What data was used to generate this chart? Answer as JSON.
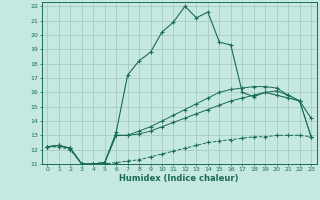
{
  "xlabel": "Humidex (Indice chaleur)",
  "ylabel": "",
  "bg_color": "#c5e8e0",
  "grid_color": "#a8ccc5",
  "line_color": "#1a6b5a",
  "xlim": [
    -0.5,
    23.5
  ],
  "ylim": [
    11,
    22.3
  ],
  "xticks": [
    0,
    1,
    2,
    3,
    4,
    5,
    6,
    7,
    8,
    9,
    10,
    11,
    12,
    13,
    14,
    15,
    16,
    17,
    18,
    19,
    20,
    21,
    22,
    23
  ],
  "yticks": [
    11,
    12,
    13,
    14,
    15,
    16,
    17,
    18,
    19,
    20,
    21,
    22
  ],
  "line_peaked_x": [
    0,
    1,
    2,
    3,
    4,
    5,
    6,
    7,
    8,
    9,
    10,
    11,
    12,
    13,
    14,
    15,
    16,
    17,
    18,
    19,
    20,
    21,
    22,
    23
  ],
  "line_peaked_y": [
    12.2,
    12.3,
    12.1,
    11.0,
    11.0,
    11.1,
    13.2,
    17.2,
    18.2,
    18.8,
    20.2,
    20.9,
    22.0,
    21.2,
    21.6,
    19.5,
    19.3,
    16.0,
    15.7,
    16.0,
    15.8,
    15.6,
    15.4,
    14.2
  ],
  "line_upper_x": [
    0,
    1,
    2,
    3,
    4,
    5,
    6,
    7,
    8,
    9,
    10,
    11,
    12,
    13,
    14,
    15,
    16,
    17,
    18,
    19,
    20,
    21,
    22,
    23
  ],
  "line_upper_y": [
    12.2,
    12.3,
    12.1,
    11.0,
    11.0,
    11.1,
    13.0,
    13.0,
    13.3,
    13.6,
    14.0,
    14.4,
    14.8,
    15.2,
    15.6,
    16.0,
    16.2,
    16.3,
    16.4,
    16.4,
    16.3,
    15.8,
    15.4,
    12.9
  ],
  "line_mid_x": [
    0,
    1,
    2,
    3,
    4,
    5,
    6,
    7,
    8,
    9,
    10,
    11,
    12,
    13,
    14,
    15,
    16,
    17,
    18,
    19,
    20,
    21,
    22,
    23
  ],
  "line_mid_y": [
    12.2,
    12.3,
    12.1,
    11.0,
    11.0,
    11.1,
    13.0,
    13.0,
    13.1,
    13.3,
    13.6,
    13.9,
    14.2,
    14.5,
    14.8,
    15.1,
    15.4,
    15.6,
    15.8,
    16.0,
    16.1,
    15.8,
    15.4,
    12.9
  ],
  "line_lower_x": [
    0,
    1,
    2,
    3,
    4,
    5,
    6,
    7,
    8,
    9,
    10,
    11,
    12,
    13,
    14,
    15,
    16,
    17,
    18,
    19,
    20,
    21,
    22,
    23
  ],
  "line_lower_y": [
    12.2,
    12.2,
    12.0,
    11.0,
    11.0,
    11.0,
    11.1,
    11.2,
    11.3,
    11.5,
    11.7,
    11.9,
    12.1,
    12.3,
    12.5,
    12.6,
    12.7,
    12.8,
    12.9,
    12.9,
    13.0,
    13.0,
    13.0,
    12.9
  ]
}
